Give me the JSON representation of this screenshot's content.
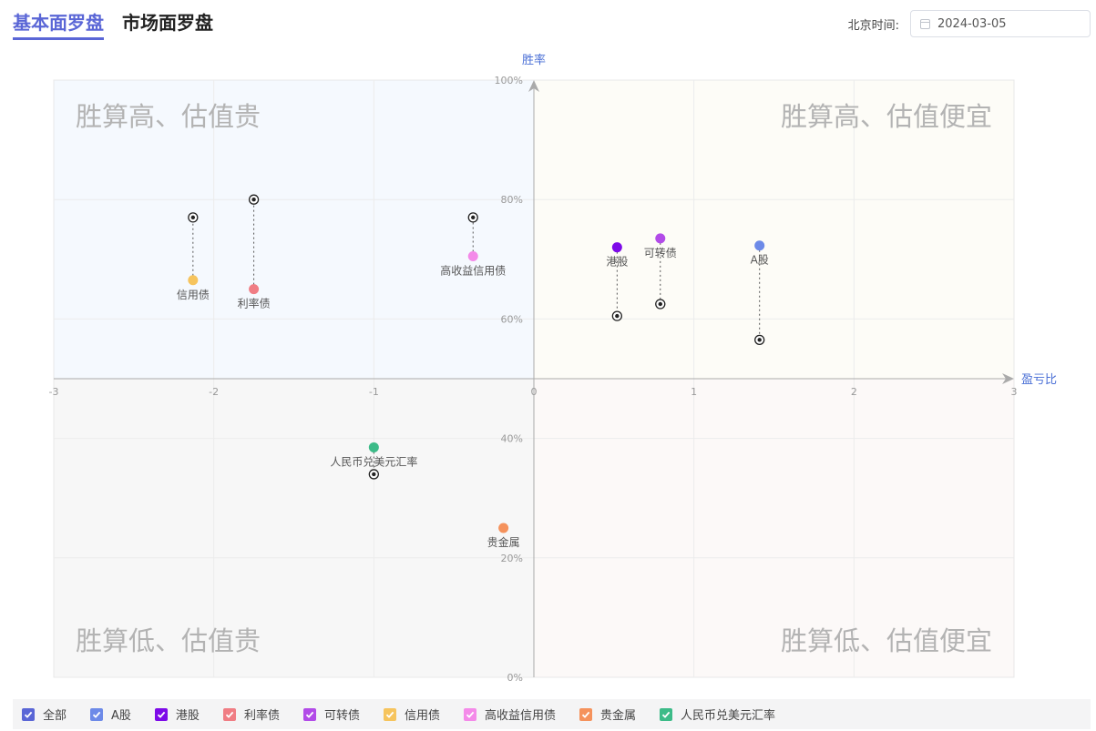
{
  "tabs": [
    {
      "label": "基本面罗盘",
      "active": true
    },
    {
      "label": "市场面罗盘",
      "active": false
    }
  ],
  "time": {
    "label": "北京时间:",
    "date": "2024-03-05",
    "icon": "calendar-icon"
  },
  "chart_data": {
    "type": "scatter",
    "xlabel": "盈亏比",
    "ylabel": "胜率",
    "xlim": [
      -3,
      3
    ],
    "ylim": [
      0,
      100
    ],
    "x_ticks": [
      "-3",
      "-2",
      "-1",
      "0",
      "1",
      "2",
      "3"
    ],
    "y_ticks": [
      "0%",
      "20%",
      "40%",
      "60%",
      "80%",
      "100%"
    ],
    "quadrants": {
      "top_left": "胜算高、估值贵",
      "top_right": "胜算高、估值便宜",
      "bottom_left": "胜算低、估值贵",
      "bottom_right": "胜算低、估值便宜"
    },
    "quadrant_colors": {
      "top_left": "#f5f9fe",
      "top_right": "#fdfcf7",
      "bottom_left": "#f7f7f7",
      "bottom_right": "#fcf9f8"
    },
    "series": [
      {
        "name": "信用债",
        "x": -2.13,
        "y": 66.5,
        "prev": [
          -2.13,
          77
        ],
        "color": "#f6c45d"
      },
      {
        "name": "利率债",
        "x": -1.75,
        "y": 65,
        "prev": [
          -1.75,
          80
        ],
        "color": "#f07d84"
      },
      {
        "name": "高收益信用债",
        "x": -0.38,
        "y": 70.5,
        "prev": [
          -0.38,
          77
        ],
        "color": "#f48ae9"
      },
      {
        "name": "港股",
        "x": 0.52,
        "y": 72,
        "prev": [
          0.52,
          60.5
        ],
        "color": "#7d0ae8"
      },
      {
        "name": "可转债",
        "x": 0.79,
        "y": 73.5,
        "prev": [
          0.79,
          62.5
        ],
        "color": "#b24be8"
      },
      {
        "name": "A股",
        "x": 1.41,
        "y": 72.3,
        "prev": [
          1.41,
          56.5
        ],
        "color": "#6d8ae8"
      },
      {
        "name": "人民币兑美元汇率",
        "x": -1.0,
        "y": 38.5,
        "prev": [
          -1.0,
          34
        ],
        "color": "#3cbb88"
      },
      {
        "name": "贵金属",
        "x": -0.19,
        "y": 25,
        "prev": null,
        "color": "#f5925c"
      }
    ]
  },
  "legend": [
    {
      "label": "全部",
      "color": "#5a66d6"
    },
    {
      "label": "A股",
      "color": "#6d8ae8"
    },
    {
      "label": "港股",
      "color": "#7d0ae8"
    },
    {
      "label": "利率债",
      "color": "#f07d84"
    },
    {
      "label": "可转债",
      "color": "#b24be8"
    },
    {
      "label": "信用债",
      "color": "#f6c45d"
    },
    {
      "label": "高收益信用债",
      "color": "#f48ae9"
    },
    {
      "label": "贵金属",
      "color": "#f5925c"
    },
    {
      "label": "人民币兑美元汇率",
      "color": "#3cbb88"
    }
  ]
}
